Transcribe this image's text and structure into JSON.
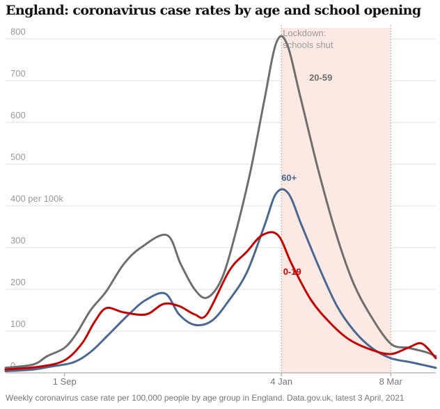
{
  "chart_data": {
    "type": "line",
    "title": "England: coronavirus case rates by age and school opening",
    "caption": "Weekly coronavirus case rate per 100,000 people by age group in England. Data.gov.uk, latest 3 April, 2021",
    "ylabel": "per 100k",
    "ylim": [
      0,
      800
    ],
    "yticks": [
      0,
      100,
      200,
      300,
      400,
      500,
      600,
      700,
      800
    ],
    "ytick_labels": [
      "0",
      "100",
      "200",
      "300",
      "400 per 100k",
      "500",
      "600",
      "700",
      "800"
    ],
    "xlim": [
      "2020-07-29",
      "2021-04-03"
    ],
    "xticks": [
      {
        "date": "2020-09-01",
        "label": "1 Sep"
      },
      {
        "date": "2021-01-04",
        "label": "4 Jan"
      },
      {
        "date": "2021-03-08",
        "label": "8 Mar"
      }
    ],
    "grid": true,
    "shaded_period": {
      "start": "2021-01-04",
      "end": "2021-03-08",
      "label_lines": [
        "Lockdown:",
        "schools shut"
      ],
      "color": "#fde9e3"
    },
    "series": [
      {
        "name": "20-59",
        "color": "#6e6e6e",
        "label_at": {
          "date": "2021-01-20",
          "value": 700
        },
        "points": [
          [
            "2020-07-29",
            12
          ],
          [
            "2020-08-14",
            20
          ],
          [
            "2020-08-22",
            40
          ],
          [
            "2020-09-01",
            60
          ],
          [
            "2020-09-08",
            95
          ],
          [
            "2020-09-16",
            150
          ],
          [
            "2020-09-25",
            195
          ],
          [
            "2020-10-05",
            260
          ],
          [
            "2020-10-15",
            300
          ],
          [
            "2020-10-30",
            330
          ],
          [
            "2020-11-07",
            260
          ],
          [
            "2020-11-15",
            200
          ],
          [
            "2020-11-22",
            180
          ],
          [
            "2020-11-30",
            220
          ],
          [
            "2020-12-07",
            310
          ],
          [
            "2020-12-17",
            480
          ],
          [
            "2020-12-25",
            650
          ],
          [
            "2021-01-01",
            790
          ],
          [
            "2021-01-07",
            790
          ],
          [
            "2021-01-15",
            660
          ],
          [
            "2021-01-25",
            490
          ],
          [
            "2021-02-04",
            340
          ],
          [
            "2021-02-14",
            220
          ],
          [
            "2021-02-24",
            140
          ],
          [
            "2021-03-08",
            70
          ],
          [
            "2021-03-18",
            60
          ],
          [
            "2021-03-28",
            50
          ],
          [
            "2021-04-03",
            40
          ]
        ]
      },
      {
        "name": "60+",
        "color": "#4a6791",
        "label_at": {
          "date": "2021-01-04",
          "value": 460
        },
        "points": [
          [
            "2020-07-29",
            4
          ],
          [
            "2020-08-14",
            8
          ],
          [
            "2020-08-24",
            15
          ],
          [
            "2020-09-06",
            25
          ],
          [
            "2020-09-16",
            50
          ],
          [
            "2020-09-26",
            90
          ],
          [
            "2020-10-08",
            140
          ],
          [
            "2020-10-18",
            175
          ],
          [
            "2020-10-29",
            190
          ],
          [
            "2020-11-06",
            140
          ],
          [
            "2020-11-15",
            115
          ],
          [
            "2020-11-25",
            125
          ],
          [
            "2020-12-05",
            175
          ],
          [
            "2020-12-15",
            240
          ],
          [
            "2020-12-25",
            350
          ],
          [
            "2021-01-01",
            430
          ],
          [
            "2021-01-08",
            430
          ],
          [
            "2021-01-16",
            350
          ],
          [
            "2021-01-26",
            250
          ],
          [
            "2021-02-05",
            160
          ],
          [
            "2021-02-15",
            100
          ],
          [
            "2021-02-25",
            60
          ],
          [
            "2021-03-08",
            35
          ],
          [
            "2021-03-20",
            25
          ],
          [
            "2021-04-03",
            12
          ]
        ]
      },
      {
        "name": "0-19",
        "color": "#c70000",
        "label_at": {
          "date": "2021-01-05",
          "value": 235
        },
        "points": [
          [
            "2020-07-29",
            8
          ],
          [
            "2020-08-18",
            15
          ],
          [
            "2020-09-01",
            30
          ],
          [
            "2020-09-11",
            70
          ],
          [
            "2020-09-18",
            120
          ],
          [
            "2020-09-25",
            155
          ],
          [
            "2020-10-05",
            145
          ],
          [
            "2020-10-18",
            140
          ],
          [
            "2020-10-28",
            165
          ],
          [
            "2020-11-06",
            160
          ],
          [
            "2020-11-15",
            140
          ],
          [
            "2020-11-22",
            140
          ],
          [
            "2020-12-05",
            245
          ],
          [
            "2020-12-15",
            290
          ],
          [
            "2020-12-24",
            330
          ],
          [
            "2021-01-02",
            330
          ],
          [
            "2021-01-10",
            260
          ],
          [
            "2021-01-21",
            175
          ],
          [
            "2021-02-01",
            120
          ],
          [
            "2021-02-12",
            80
          ],
          [
            "2021-02-25",
            55
          ],
          [
            "2021-03-08",
            45
          ],
          [
            "2021-03-18",
            60
          ],
          [
            "2021-03-26",
            70
          ],
          [
            "2021-04-03",
            35
          ]
        ]
      }
    ]
  }
}
